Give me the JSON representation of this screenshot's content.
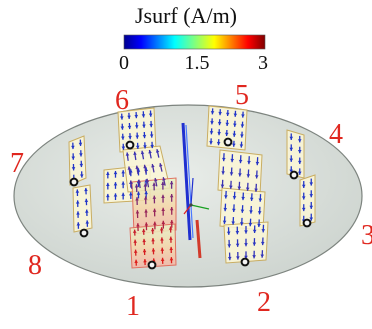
{
  "colorbar": {
    "title": "Jsurf (A/m)",
    "ticks": [
      "0",
      "1.5",
      "3"
    ],
    "min": 0,
    "max": 3,
    "colormap": "jet"
  },
  "ports": {
    "p1": "1",
    "p2": "2",
    "p3": "3",
    "p4": "4",
    "p5": "5",
    "p6": "6",
    "p7": "7",
    "p8": "8"
  },
  "colors": {
    "label": "#e0271f",
    "ellipse_fill": "#d7ddd9",
    "ellipse_stroke": "#7d847f",
    "panel_fill": "#fbf7d6",
    "panel_edge": "#c9ad62",
    "arrow_low": "#2236c9",
    "arrow_high": "#e11b16",
    "axis_x": "#e02020",
    "axis_y": "#18a020",
    "axis_z": "#2030d0"
  }
}
